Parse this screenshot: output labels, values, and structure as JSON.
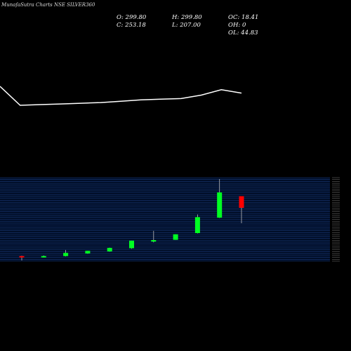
{
  "header": {
    "title": "MunafaSutra Charts NSE SILVER360"
  },
  "ohlc": {
    "open_label": "O: 299.80",
    "high_label": "H: 299.80",
    "oc_label": "OC: 18.41",
    "close_label": "C: 253.18",
    "low_label": "L: 207.00",
    "oh_label": "OH: 0",
    "ol_label": "OL: 44.83"
  },
  "colors": {
    "background": "#000000",
    "up": "#00ff22",
    "down": "#ff0000",
    "line": "#ffffff",
    "grid": "#1a3a78",
    "panel": "#000d26"
  },
  "chart_data": [
    {
      "type": "line",
      "series": [
        {
          "values": [
            1.0,
            0.72,
            0.73,
            0.74,
            0.75,
            0.76,
            0.78,
            0.8,
            0.81,
            0.82,
            0.87,
            0.95,
            0.9
          ]
        }
      ]
    },
    {
      "type": "candlestick",
      "candles": [
        {
          "open": 6.5,
          "high": 7.0,
          "low": -1.0,
          "close": 5.0
        },
        {
          "open": 5.0,
          "high": 7.5,
          "low": 4.0,
          "close": 6.5
        },
        {
          "open": 6.5,
          "high": 17.0,
          "low": 6.0,
          "close": 12.0
        },
        {
          "open": 11.0,
          "high": 15.5,
          "low": 10.5,
          "close": 15.5
        },
        {
          "open": 14.5,
          "high": 21.0,
          "low": 14.0,
          "close": 20.5
        },
        {
          "open": 20.0,
          "high": 33.0,
          "low": 19.0,
          "close": 33.0
        },
        {
          "open": 31.5,
          "high": 50.0,
          "low": 30.0,
          "close": 34.0
        },
        {
          "open": 34.5,
          "high": 44.0,
          "low": 34.5,
          "close": 44.0
        },
        {
          "open": 46.0,
          "high": 78.0,
          "low": 45.5,
          "close": 73.5
        },
        {
          "open": 72.5,
          "high": 139.0,
          "low": 72.0,
          "close": 116.0
        },
        {
          "open": 109.5,
          "high": 109.5,
          "low": 63.0,
          "close": 89.5
        }
      ]
    }
  ]
}
